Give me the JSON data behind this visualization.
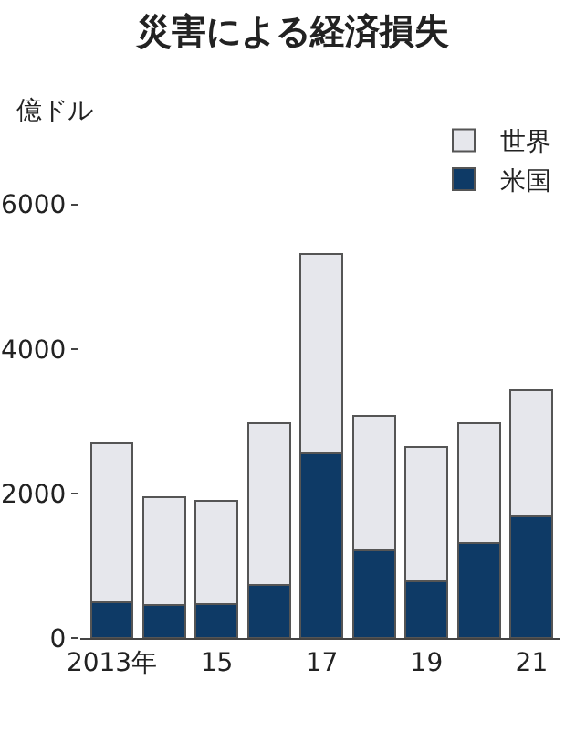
{
  "chart_data": {
    "type": "bar",
    "title": "災害による経済損失",
    "ylabel": "億ドル",
    "categories": [
      "2013年",
      null,
      "15",
      null,
      "17",
      null,
      "19",
      null,
      "21"
    ],
    "stacked": true,
    "series": [
      {
        "name": "米国",
        "color": "#0e3a66",
        "values": [
          490,
          450,
          470,
          730,
          2550,
          1220,
          780,
          1320,
          1680
        ]
      },
      {
        "name": "世界",
        "color": "#e6e7ec",
        "values": [
          2210,
          1500,
          1430,
          2240,
          2760,
          1850,
          1860,
          1650,
          1750
        ]
      }
    ],
    "ylim": [
      0,
      6500
    ],
    "yticks": [
      0,
      2000,
      4000,
      6000
    ],
    "grid": false,
    "legend": "top right"
  }
}
